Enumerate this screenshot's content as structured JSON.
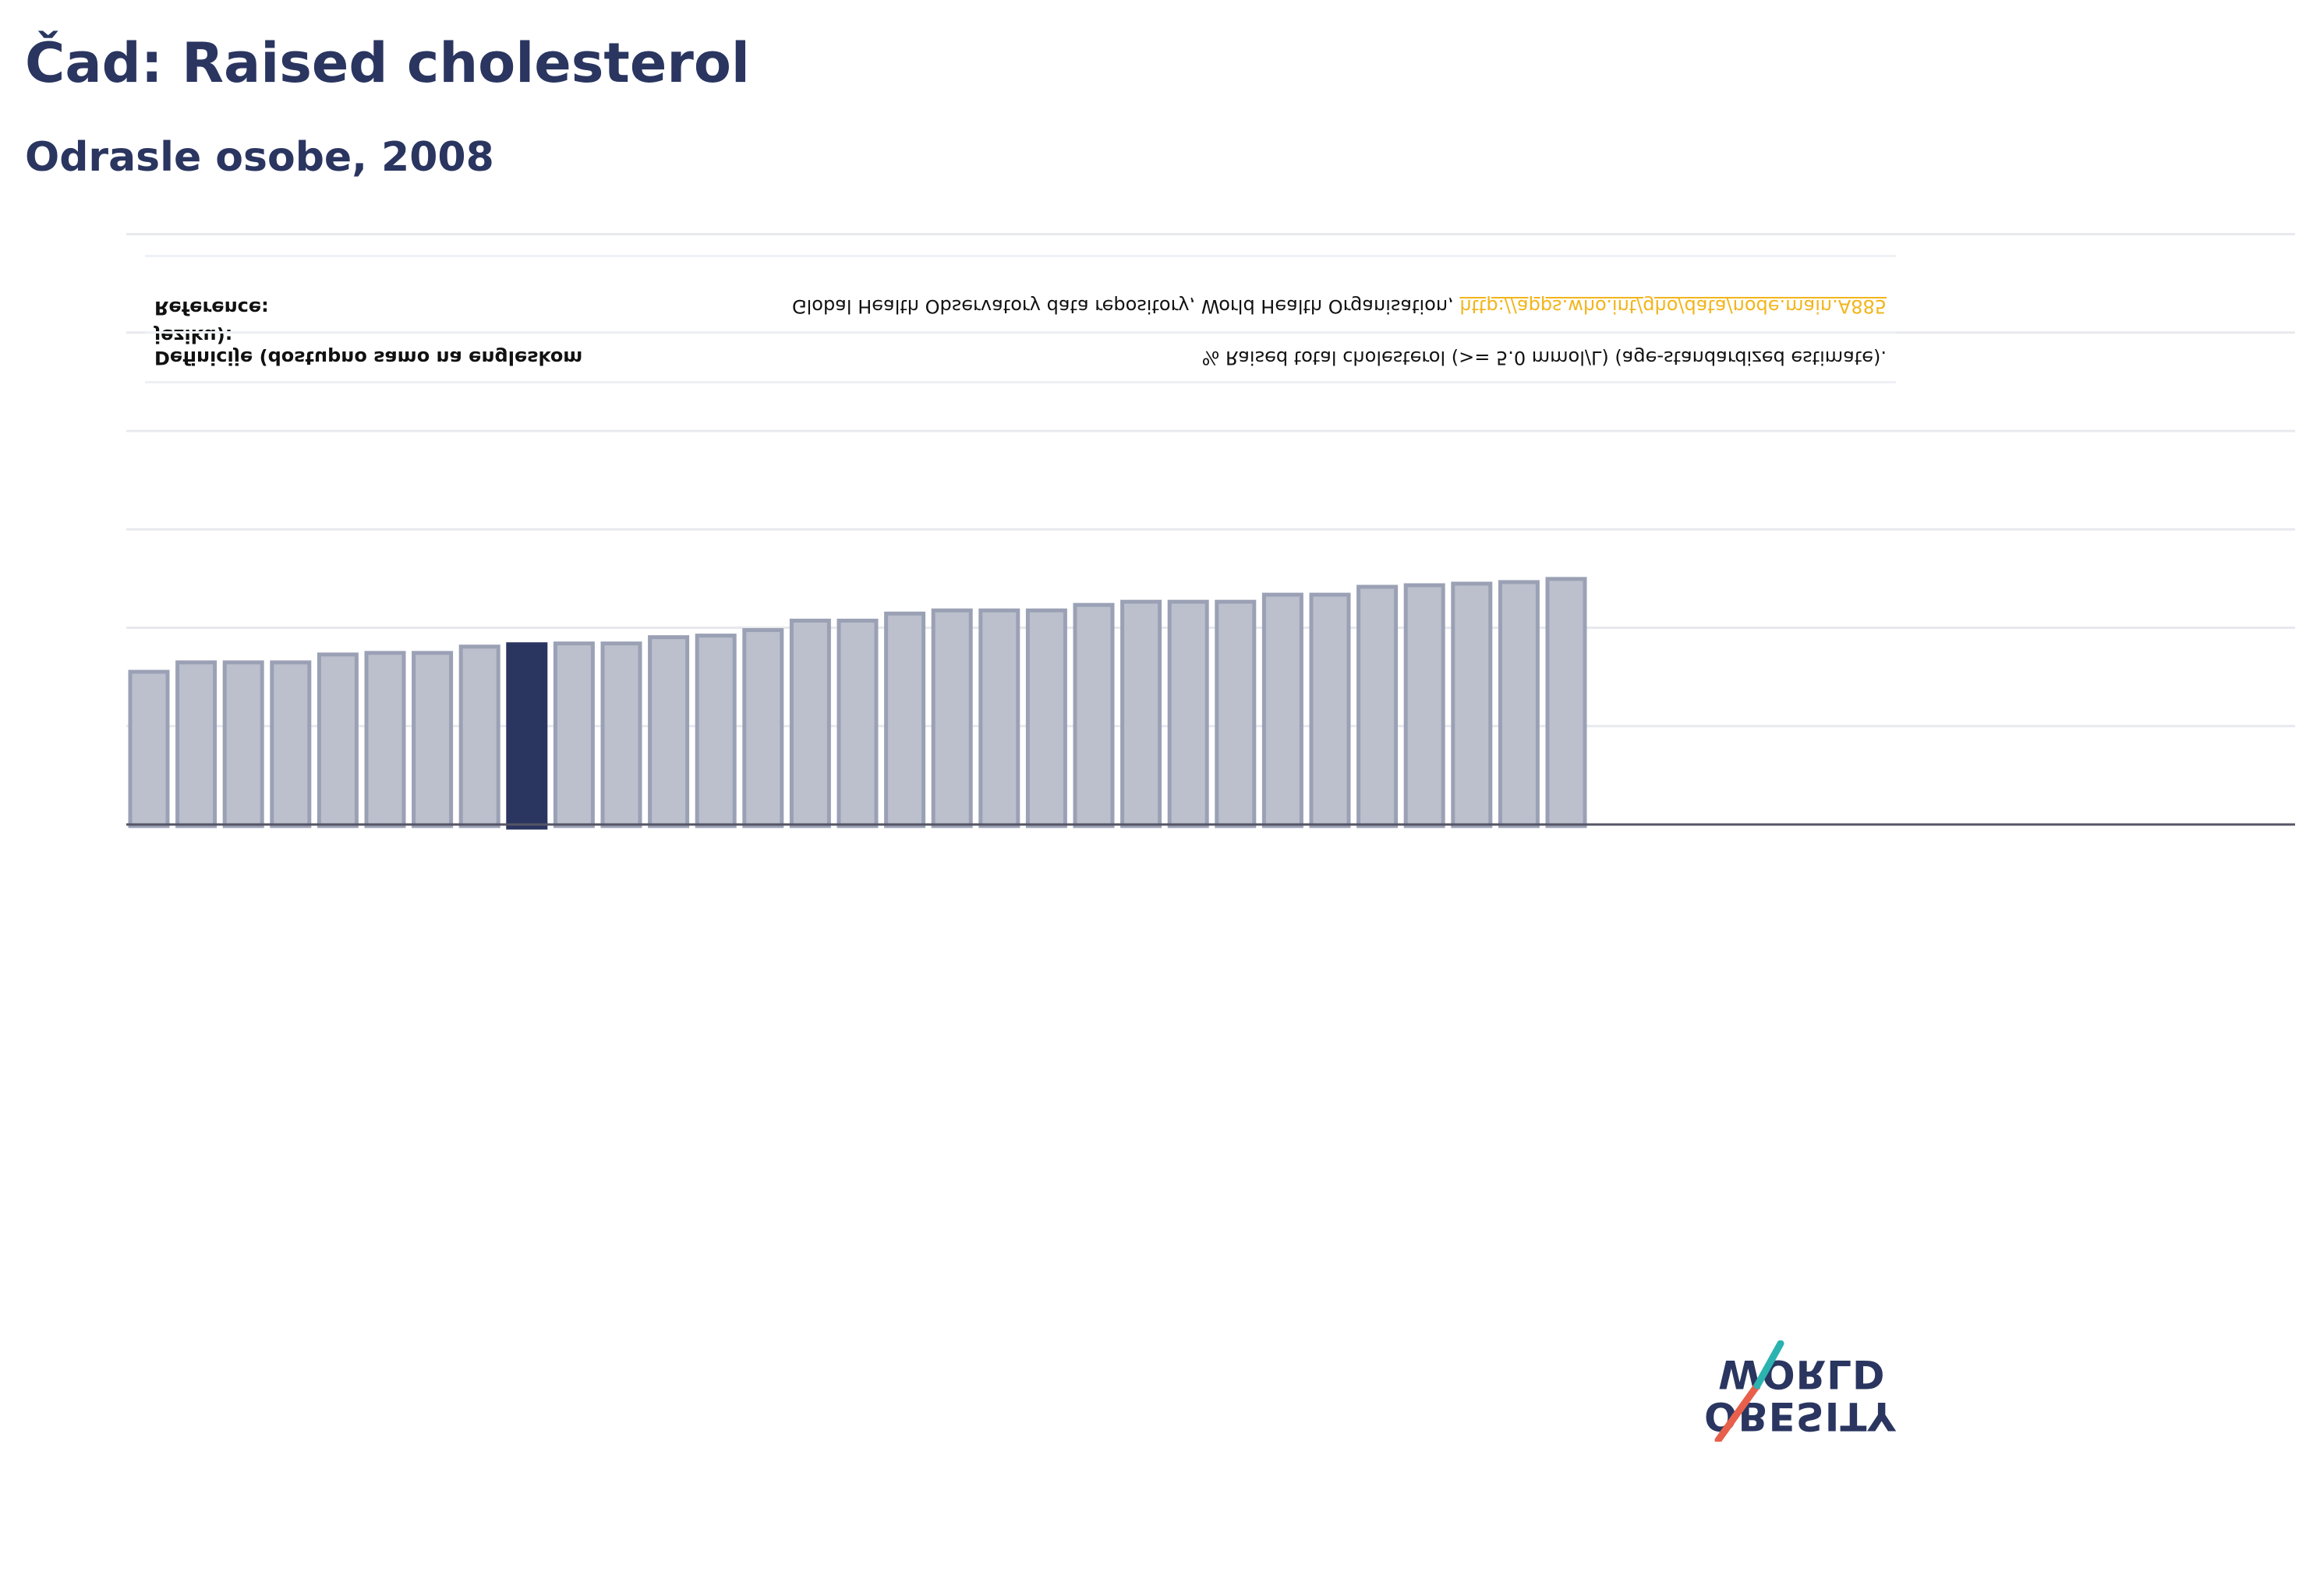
{
  "header": {
    "title": "Čad: Raised cholesterol",
    "subtitle": "Odrasle osobe, 2008"
  },
  "info": {
    "definition_label": "Definicije (dostupno samo na engleskom jeziku):",
    "definition_value": "% Raised total cholesterol (>= 5.0 mmol/L) (age-standardized estimate).",
    "reference_label": "Reference:",
    "reference_text": "Global Health Observatory data repository, World Health Organisation,",
    "reference_link": "http://apps.who.int/gho/data/node.main.A885"
  },
  "logo": {
    "line1": "OBESITY",
    "line2": "WORLD"
  },
  "colors": {
    "primary": "#2a3560",
    "bar_fill": "#bcc0cd",
    "bar_stroke": "#9ba1b5",
    "link": "#f2b51b",
    "logo_red": "#e8604c",
    "logo_teal": "#2bb3b0"
  },
  "chart_data": {
    "type": "bar",
    "highlight_index": 8,
    "values": [
      19.4,
      20.6,
      20.6,
      20.6,
      21.6,
      21.8,
      21.8,
      22.6,
      22.9,
      23.0,
      23.0,
      23.8,
      24.0,
      24.7,
      25.9,
      25.9,
      26.8,
      27.2,
      27.2,
      27.2,
      27.9,
      28.3,
      28.3,
      28.3,
      29.2,
      29.2,
      30.2,
      30.4,
      30.6,
      30.8,
      31.2
    ],
    "ylim": [
      0,
      50
    ],
    "grid_values": [
      12.5,
      25,
      37.5,
      50,
      62.5,
      75
    ],
    "grid": true
  }
}
